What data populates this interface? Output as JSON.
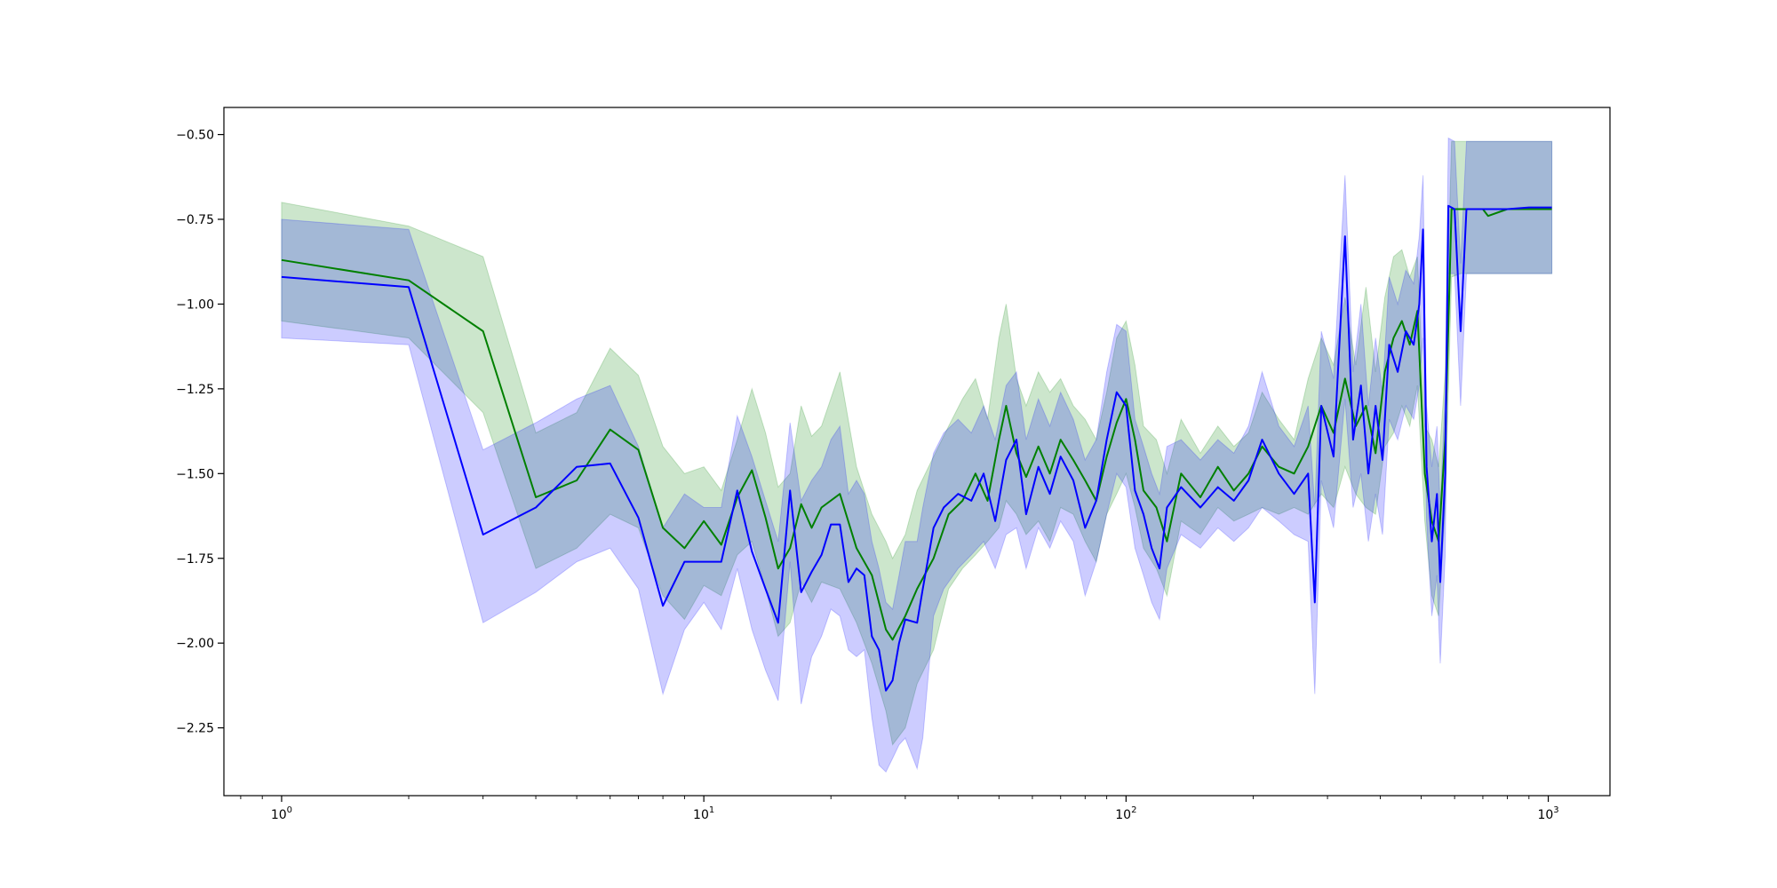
{
  "chart_data": {
    "type": "line",
    "title": "",
    "xlabel": "",
    "ylabel": "",
    "xscale": "log",
    "xlim": [
      0.73,
      1400
    ],
    "ylim": [
      -2.45,
      -0.42
    ],
    "grid": false,
    "legend": "none",
    "x_ticks": [
      {
        "value": 1,
        "base": "10",
        "exp": "0"
      },
      {
        "value": 10,
        "base": "10",
        "exp": "1"
      },
      {
        "value": 100,
        "base": "10",
        "exp": "2"
      },
      {
        "value": 1000,
        "base": "10",
        "exp": "3"
      }
    ],
    "y_ticks": [
      {
        "value": -0.5,
        "label": "−0.50"
      },
      {
        "value": -0.75,
        "label": "−0.75"
      },
      {
        "value": -1.0,
        "label": "−1.00"
      },
      {
        "value": -1.25,
        "label": "−1.25"
      },
      {
        "value": -1.5,
        "label": "−1.50"
      },
      {
        "value": -1.75,
        "label": "−1.75"
      },
      {
        "value": -2.0,
        "label": "−2.00"
      },
      {
        "value": -2.25,
        "label": "−2.25"
      }
    ],
    "series": [
      {
        "color": "#008000",
        "band_color": "#008000",
        "band_opacity": 0.2,
        "points": [
          [
            1,
            -0.87,
            -0.7,
            -1.05
          ],
          [
            2,
            -0.93,
            -0.77,
            -1.1
          ],
          [
            3,
            -1.08,
            -0.86,
            -1.32
          ],
          [
            4,
            -1.57,
            -1.38,
            -1.78
          ],
          [
            5,
            -1.52,
            -1.32,
            -1.72
          ],
          [
            6,
            -1.37,
            -1.13,
            -1.62
          ],
          [
            7,
            -1.43,
            -1.21,
            -1.66
          ],
          [
            8,
            -1.66,
            -1.42,
            -1.86
          ],
          [
            9,
            -1.72,
            -1.5,
            -1.93
          ],
          [
            10,
            -1.64,
            -1.48,
            -1.83
          ],
          [
            11,
            -1.71,
            -1.55,
            -1.86
          ],
          [
            12,
            -1.57,
            -1.4,
            -1.74
          ],
          [
            13,
            -1.49,
            -1.25,
            -1.7
          ],
          [
            14,
            -1.63,
            -1.38,
            -1.84
          ],
          [
            15,
            -1.78,
            -1.54,
            -1.98
          ],
          [
            16,
            -1.72,
            -1.5,
            -1.94
          ],
          [
            17,
            -1.59,
            -1.3,
            -1.82
          ],
          [
            18,
            -1.66,
            -1.39,
            -1.88
          ],
          [
            19,
            -1.6,
            -1.36,
            -1.82
          ],
          [
            21,
            -1.56,
            -1.2,
            -1.84
          ],
          [
            23,
            -1.72,
            -1.48,
            -1.94
          ],
          [
            25,
            -1.8,
            -1.62,
            -2.06
          ],
          [
            27,
            -1.96,
            -1.7,
            -2.2
          ],
          [
            28,
            -1.99,
            -1.75,
            -2.3
          ],
          [
            30,
            -1.92,
            -1.68,
            -2.25
          ],
          [
            32,
            -1.84,
            -1.55,
            -2.12
          ],
          [
            35,
            -1.75,
            -1.45,
            -2.02
          ],
          [
            38,
            -1.62,
            -1.36,
            -1.84
          ],
          [
            41,
            -1.58,
            -1.28,
            -1.78
          ],
          [
            44,
            -1.5,
            -1.22,
            -1.74
          ],
          [
            47,
            -1.58,
            -1.34,
            -1.7
          ],
          [
            50,
            -1.4,
            -1.1,
            -1.66
          ],
          [
            52,
            -1.3,
            -1.0,
            -1.58
          ],
          [
            55,
            -1.44,
            -1.22,
            -1.62
          ],
          [
            58,
            -1.51,
            -1.3,
            -1.68
          ],
          [
            62,
            -1.42,
            -1.2,
            -1.64
          ],
          [
            66,
            -1.5,
            -1.26,
            -1.7
          ],
          [
            70,
            -1.4,
            -1.22,
            -1.6
          ],
          [
            75,
            -1.46,
            -1.3,
            -1.62
          ],
          [
            80,
            -1.52,
            -1.34,
            -1.7
          ],
          [
            85,
            -1.58,
            -1.4,
            -1.76
          ],
          [
            90,
            -1.45,
            -1.26,
            -1.62
          ],
          [
            95,
            -1.35,
            -1.1,
            -1.56
          ],
          [
            100,
            -1.28,
            -1.05,
            -1.5
          ],
          [
            105,
            -1.4,
            -1.18,
            -1.6
          ],
          [
            110,
            -1.55,
            -1.36,
            -1.72
          ],
          [
            118,
            -1.6,
            -1.4,
            -1.78
          ],
          [
            125,
            -1.7,
            -1.5,
            -1.86
          ],
          [
            135,
            -1.5,
            -1.34,
            -1.64
          ],
          [
            150,
            -1.57,
            -1.44,
            -1.68
          ],
          [
            165,
            -1.48,
            -1.36,
            -1.6
          ],
          [
            180,
            -1.55,
            -1.42,
            -1.64
          ],
          [
            195,
            -1.5,
            -1.38,
            -1.62
          ],
          [
            210,
            -1.42,
            -1.26,
            -1.6
          ],
          [
            230,
            -1.48,
            -1.34,
            -1.62
          ],
          [
            250,
            -1.5,
            -1.4,
            -1.6
          ],
          [
            270,
            -1.42,
            -1.22,
            -1.62
          ],
          [
            290,
            -1.3,
            -1.1,
            -1.56
          ],
          [
            310,
            -1.38,
            -1.18,
            -1.6
          ],
          [
            330,
            -1.22,
            -0.98,
            -1.48
          ],
          [
            350,
            -1.36,
            -1.18,
            -1.56
          ],
          [
            370,
            -1.3,
            -0.95,
            -1.6
          ],
          [
            390,
            -1.44,
            -1.2,
            -1.62
          ],
          [
            410,
            -1.2,
            -0.98,
            -1.42
          ],
          [
            430,
            -1.1,
            -0.86,
            -1.38
          ],
          [
            450,
            -1.05,
            -0.84,
            -1.3
          ],
          [
            470,
            -1.12,
            -0.92,
            -1.36
          ],
          [
            490,
            -1.02,
            -0.86,
            -1.24
          ],
          [
            510,
            -1.5,
            -1.36,
            -1.64
          ],
          [
            530,
            -1.64,
            -1.4,
            -1.86
          ],
          [
            550,
            -1.7,
            -1.48,
            -1.92
          ],
          [
            570,
            -1.4,
            -1.2,
            -1.6
          ],
          [
            590,
            -0.72,
            -0.52,
            -0.92
          ],
          [
            620,
            -0.72,
            -0.52,
            -0.91
          ],
          [
            700,
            -0.72,
            -0.52,
            -0.91
          ],
          [
            720,
            -0.74,
            -0.52,
            -0.91
          ],
          [
            800,
            -0.72,
            -0.52,
            -0.91
          ],
          [
            900,
            -0.72,
            -0.52,
            -0.91
          ],
          [
            1020,
            -0.72,
            -0.52,
            -0.91
          ]
        ]
      },
      {
        "color": "#0000ff",
        "band_color": "#0000ff",
        "band_opacity": 0.2,
        "points": [
          [
            1,
            -0.92,
            -0.75,
            -1.1
          ],
          [
            2,
            -0.95,
            -0.78,
            -1.12
          ],
          [
            3,
            -1.68,
            -1.43,
            -1.94
          ],
          [
            4,
            -1.6,
            -1.35,
            -1.85
          ],
          [
            5,
            -1.48,
            -1.28,
            -1.76
          ],
          [
            6,
            -1.47,
            -1.24,
            -1.72
          ],
          [
            7,
            -1.63,
            -1.42,
            -1.84
          ],
          [
            8,
            -1.89,
            -1.66,
            -2.15
          ],
          [
            9,
            -1.76,
            -1.56,
            -1.96
          ],
          [
            10,
            -1.76,
            -1.6,
            -1.88
          ],
          [
            11,
            -1.76,
            -1.6,
            -1.96
          ],
          [
            12,
            -1.55,
            -1.33,
            -1.78
          ],
          [
            13,
            -1.73,
            -1.45,
            -1.96
          ],
          [
            14,
            -1.84,
            -1.58,
            -2.08
          ],
          [
            15,
            -1.94,
            -1.7,
            -2.17
          ],
          [
            16,
            -1.55,
            -1.35,
            -1.76
          ],
          [
            17,
            -1.85,
            -1.58,
            -2.18
          ],
          [
            18,
            -1.79,
            -1.52,
            -2.04
          ],
          [
            19,
            -1.74,
            -1.48,
            -1.98
          ],
          [
            20,
            -1.65,
            -1.4,
            -1.9
          ],
          [
            21,
            -1.65,
            -1.36,
            -1.92
          ],
          [
            22,
            -1.82,
            -1.56,
            -2.02
          ],
          [
            23,
            -1.78,
            -1.52,
            -2.04
          ],
          [
            24,
            -1.8,
            -1.56,
            -2.02
          ],
          [
            25,
            -1.98,
            -1.7,
            -2.22
          ],
          [
            26,
            -2.02,
            -1.78,
            -2.36
          ],
          [
            27,
            -2.14,
            -1.88,
            -2.38
          ],
          [
            28,
            -2.11,
            -1.9,
            -2.34
          ],
          [
            29,
            -2.0,
            -1.8,
            -2.3
          ],
          [
            30,
            -1.93,
            -1.7,
            -2.28
          ],
          [
            32,
            -1.94,
            -1.7,
            -2.37
          ],
          [
            33,
            -1.84,
            -1.6,
            -2.28
          ],
          [
            35,
            -1.66,
            -1.44,
            -1.92
          ],
          [
            37,
            -1.6,
            -1.38,
            -1.84
          ],
          [
            40,
            -1.56,
            -1.34,
            -1.78
          ],
          [
            43,
            -1.58,
            -1.38,
            -1.74
          ],
          [
            46,
            -1.5,
            -1.3,
            -1.7
          ],
          [
            49,
            -1.64,
            -1.4,
            -1.78
          ],
          [
            52,
            -1.46,
            -1.24,
            -1.68
          ],
          [
            55,
            -1.4,
            -1.2,
            -1.66
          ],
          [
            58,
            -1.62,
            -1.4,
            -1.78
          ],
          [
            62,
            -1.48,
            -1.28,
            -1.66
          ],
          [
            66,
            -1.56,
            -1.36,
            -1.72
          ],
          [
            70,
            -1.45,
            -1.26,
            -1.64
          ],
          [
            75,
            -1.52,
            -1.34,
            -1.7
          ],
          [
            80,
            -1.66,
            -1.46,
            -1.86
          ],
          [
            85,
            -1.58,
            -1.4,
            -1.76
          ],
          [
            90,
            -1.4,
            -1.2,
            -1.62
          ],
          [
            95,
            -1.26,
            -1.06,
            -1.5
          ],
          [
            100,
            -1.3,
            -1.08,
            -1.54
          ],
          [
            105,
            -1.55,
            -1.34,
            -1.72
          ],
          [
            110,
            -1.62,
            -1.42,
            -1.8
          ],
          [
            115,
            -1.72,
            -1.5,
            -1.88
          ],
          [
            120,
            -1.78,
            -1.56,
            -1.93
          ],
          [
            125,
            -1.6,
            -1.42,
            -1.78
          ],
          [
            135,
            -1.54,
            -1.4,
            -1.68
          ],
          [
            150,
            -1.6,
            -1.46,
            -1.72
          ],
          [
            165,
            -1.54,
            -1.4,
            -1.66
          ],
          [
            180,
            -1.58,
            -1.44,
            -1.7
          ],
          [
            195,
            -1.52,
            -1.36,
            -1.66
          ],
          [
            210,
            -1.4,
            -1.2,
            -1.6
          ],
          [
            230,
            -1.5,
            -1.36,
            -1.64
          ],
          [
            250,
            -1.56,
            -1.42,
            -1.68
          ],
          [
            270,
            -1.5,
            -1.3,
            -1.7
          ],
          [
            280,
            -1.88,
            -1.6,
            -2.15
          ],
          [
            290,
            -1.3,
            -1.08,
            -1.52
          ],
          [
            310,
            -1.45,
            -1.22,
            -1.66
          ],
          [
            330,
            -0.8,
            -0.62,
            -1.28
          ],
          [
            345,
            -1.4,
            -1.2,
            -1.6
          ],
          [
            360,
            -1.24,
            -1.0,
            -1.5
          ],
          [
            375,
            -1.5,
            -1.3,
            -1.7
          ],
          [
            390,
            -1.3,
            -1.1,
            -1.56
          ],
          [
            405,
            -1.46,
            -1.26,
            -1.68
          ],
          [
            420,
            -1.12,
            -0.92,
            -1.34
          ],
          [
            440,
            -1.2,
            -1.0,
            -1.4
          ],
          [
            460,
            -1.08,
            -0.9,
            -1.3
          ],
          [
            480,
            -1.12,
            -0.94,
            -1.34
          ],
          [
            495,
            -1.0,
            -0.8,
            -1.24
          ],
          [
            505,
            -0.78,
            -0.62,
            -1.1
          ],
          [
            515,
            -1.48,
            -1.3,
            -1.64
          ],
          [
            530,
            -1.7,
            -1.48,
            -1.92
          ],
          [
            545,
            -1.56,
            -1.36,
            -1.8
          ],
          [
            555,
            -1.82,
            -1.6,
            -2.06
          ],
          [
            570,
            -1.5,
            -1.26,
            -1.74
          ],
          [
            580,
            -0.71,
            -0.51,
            -0.91
          ],
          [
            600,
            -0.72,
            -0.52,
            -0.91
          ],
          [
            620,
            -1.08,
            -0.88,
            -1.3
          ],
          [
            640,
            -0.72,
            -0.52,
            -0.91
          ],
          [
            700,
            -0.72,
            -0.52,
            -0.91
          ],
          [
            800,
            -0.72,
            -0.52,
            -0.91
          ],
          [
            900,
            -0.715,
            -0.52,
            -0.91
          ],
          [
            1020,
            -0.715,
            -0.52,
            -0.91
          ]
        ]
      }
    ]
  }
}
